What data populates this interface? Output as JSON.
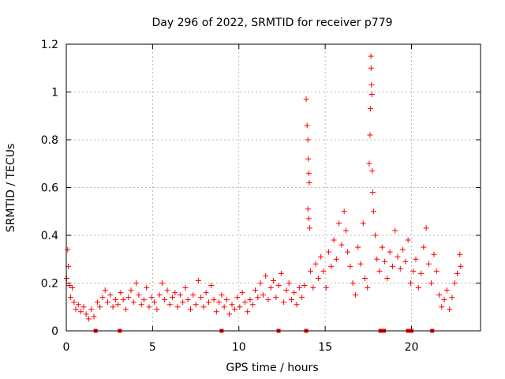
{
  "chart_data": {
    "type": "scatter",
    "title": "Day 296 of 2022, SRMTID for receiver p779",
    "xlabel": "GPS time / hours",
    "ylabel": "SRMTID / TECUs",
    "xlim": [
      0,
      24
    ],
    "ylim": [
      0,
      1.2
    ],
    "x_ticks": [
      0,
      5,
      10,
      15,
      20
    ],
    "x_tick_labels": [
      "0",
      "5",
      "10",
      "15",
      "20"
    ],
    "y_ticks": [
      0,
      0.2,
      0.4,
      0.6,
      0.8,
      1.0,
      1.2
    ],
    "y_tick_labels": [
      "0",
      "0.2",
      "0.4",
      "0.6",
      "0.8",
      "1",
      "1.2"
    ],
    "grid": true,
    "marker": "+",
    "color": "#ff0000",
    "series": [
      {
        "name": "SRMTID",
        "points": [
          [
            0.02,
            0.22
          ],
          [
            0.08,
            0.34
          ],
          [
            0.12,
            0.27
          ],
          [
            0.18,
            0.19
          ],
          [
            0.25,
            0.14
          ],
          [
            0.35,
            0.18
          ],
          [
            0.45,
            0.12
          ],
          [
            0.55,
            0.09
          ],
          [
            0.7,
            0.11
          ],
          [
            0.85,
            0.08
          ],
          [
            1.0,
            0.1
          ],
          [
            1.15,
            0.07
          ],
          [
            1.3,
            0.05
          ],
          [
            1.45,
            0.09
          ],
          [
            1.6,
            0.06
          ],
          [
            1.8,
            0.12
          ],
          [
            1.95,
            0.1
          ],
          [
            2.1,
            0.14
          ],
          [
            2.25,
            0.17
          ],
          [
            2.4,
            0.12
          ],
          [
            2.55,
            0.15
          ],
          [
            2.7,
            0.1
          ],
          [
            2.85,
            0.13
          ],
          [
            3.0,
            0.11
          ],
          [
            3.15,
            0.16
          ],
          [
            3.3,
            0.13
          ],
          [
            3.45,
            0.09
          ],
          [
            3.6,
            0.14
          ],
          [
            3.75,
            0.17
          ],
          [
            3.9,
            0.12
          ],
          [
            4.05,
            0.2
          ],
          [
            4.2,
            0.15
          ],
          [
            4.35,
            0.11
          ],
          [
            4.5,
            0.13
          ],
          [
            4.65,
            0.18
          ],
          [
            4.8,
            0.1
          ],
          [
            4.95,
            0.14
          ],
          [
            5.1,
            0.12
          ],
          [
            5.25,
            0.09
          ],
          [
            5.4,
            0.15
          ],
          [
            5.55,
            0.2
          ],
          [
            5.7,
            0.13
          ],
          [
            5.85,
            0.17
          ],
          [
            6.0,
            0.11
          ],
          [
            6.15,
            0.14
          ],
          [
            6.3,
            0.16
          ],
          [
            6.45,
            0.1
          ],
          [
            6.6,
            0.15
          ],
          [
            6.75,
            0.12
          ],
          [
            6.9,
            0.18
          ],
          [
            7.05,
            0.13
          ],
          [
            7.2,
            0.09
          ],
          [
            7.35,
            0.15
          ],
          [
            7.5,
            0.11
          ],
          [
            7.65,
            0.21
          ],
          [
            7.8,
            0.14
          ],
          [
            7.95,
            0.1
          ],
          [
            8.1,
            0.16
          ],
          [
            8.25,
            0.12
          ],
          [
            8.4,
            0.19
          ],
          [
            8.55,
            0.13
          ],
          [
            8.7,
            0.08
          ],
          [
            8.85,
            0.12
          ],
          [
            9.0,
            0.15
          ],
          [
            9.15,
            0.1
          ],
          [
            9.3,
            0.13
          ],
          [
            9.45,
            0.07
          ],
          [
            9.6,
            0.11
          ],
          [
            9.75,
            0.09
          ],
          [
            9.9,
            0.14
          ],
          [
            10.05,
            0.1
          ],
          [
            10.2,
            0.16
          ],
          [
            10.35,
            0.12
          ],
          [
            10.5,
            0.08
          ],
          [
            10.65,
            0.13
          ],
          [
            10.8,
            0.11
          ],
          [
            10.95,
            0.17
          ],
          [
            11.1,
            0.14
          ],
          [
            11.25,
            0.2
          ],
          [
            11.4,
            0.15
          ],
          [
            11.55,
            0.23
          ],
          [
            11.7,
            0.13
          ],
          [
            11.85,
            0.18
          ],
          [
            12.0,
            0.21
          ],
          [
            12.15,
            0.14
          ],
          [
            12.3,
            0.19
          ],
          [
            12.45,
            0.24
          ],
          [
            12.6,
            0.12
          ],
          [
            12.75,
            0.17
          ],
          [
            12.9,
            0.2
          ],
          [
            13.05,
            0.13
          ],
          [
            13.2,
            0.16
          ],
          [
            13.35,
            0.11
          ],
          [
            13.5,
            0.18
          ],
          [
            13.65,
            0.14
          ],
          [
            13.8,
            0.19
          ],
          [
            13.9,
            0.97
          ],
          [
            13.95,
            0.86
          ],
          [
            14.0,
            0.8
          ],
          [
            14.02,
            0.72
          ],
          [
            14.05,
            0.66
          ],
          [
            14.08,
            0.62
          ],
          [
            14.0,
            0.51
          ],
          [
            14.05,
            0.47
          ],
          [
            14.1,
            0.43
          ],
          [
            14.15,
            0.25
          ],
          [
            14.3,
            0.18
          ],
          [
            14.45,
            0.28
          ],
          [
            14.6,
            0.22
          ],
          [
            14.75,
            0.31
          ],
          [
            14.9,
            0.25
          ],
          [
            15.05,
            0.18
          ],
          [
            15.2,
            0.33
          ],
          [
            15.35,
            0.27
          ],
          [
            15.5,
            0.38
          ],
          [
            15.65,
            0.3
          ],
          [
            15.8,
            0.45
          ],
          [
            15.95,
            0.36
          ],
          [
            16.1,
            0.5
          ],
          [
            16.2,
            0.42
          ],
          [
            16.3,
            0.33
          ],
          [
            16.45,
            0.27
          ],
          [
            16.6,
            0.2
          ],
          [
            16.75,
            0.15
          ],
          [
            16.9,
            0.35
          ],
          [
            17.05,
            0.28
          ],
          [
            17.2,
            0.45
          ],
          [
            17.3,
            0.22
          ],
          [
            17.45,
            0.18
          ],
          [
            17.55,
            0.7
          ],
          [
            17.6,
            0.82
          ],
          [
            17.62,
            0.93
          ],
          [
            17.65,
            1.15
          ],
          [
            17.66,
            1.1
          ],
          [
            17.68,
            1.03
          ],
          [
            17.7,
            0.99
          ],
          [
            17.72,
            0.67
          ],
          [
            17.75,
            0.58
          ],
          [
            17.8,
            0.5
          ],
          [
            17.9,
            0.4
          ],
          [
            18.0,
            0.3
          ],
          [
            18.15,
            0.25
          ],
          [
            18.3,
            0.35
          ],
          [
            18.45,
            0.29
          ],
          [
            18.6,
            0.22
          ],
          [
            18.75,
            0.33
          ],
          [
            18.9,
            0.27
          ],
          [
            19.05,
            0.42
          ],
          [
            19.2,
            0.31
          ],
          [
            19.35,
            0.26
          ],
          [
            19.5,
            0.34
          ],
          [
            19.65,
            0.29
          ],
          [
            19.8,
            0.38
          ],
          [
            19.95,
            0.2
          ],
          [
            20.1,
            0.25
          ],
          [
            20.25,
            0.3
          ],
          [
            20.4,
            0.18
          ],
          [
            20.55,
            0.24
          ],
          [
            20.7,
            0.35
          ],
          [
            20.85,
            0.43
          ],
          [
            21.0,
            0.28
          ],
          [
            21.15,
            0.2
          ],
          [
            21.3,
            0.32
          ],
          [
            21.45,
            0.25
          ],
          [
            21.6,
            0.15
          ],
          [
            21.75,
            0.1
          ],
          [
            21.9,
            0.13
          ],
          [
            22.05,
            0.17
          ],
          [
            22.2,
            0.09
          ],
          [
            22.35,
            0.14
          ],
          [
            22.5,
            0.2
          ],
          [
            22.65,
            0.24
          ],
          [
            22.8,
            0.32
          ],
          [
            22.85,
            0.27
          ]
        ]
      }
    ],
    "x_axis_markers": [
      1.7,
      3.1,
      9.0,
      12.3,
      13.9,
      18.2,
      18.4,
      19.8,
      20.0,
      21.2
    ]
  }
}
